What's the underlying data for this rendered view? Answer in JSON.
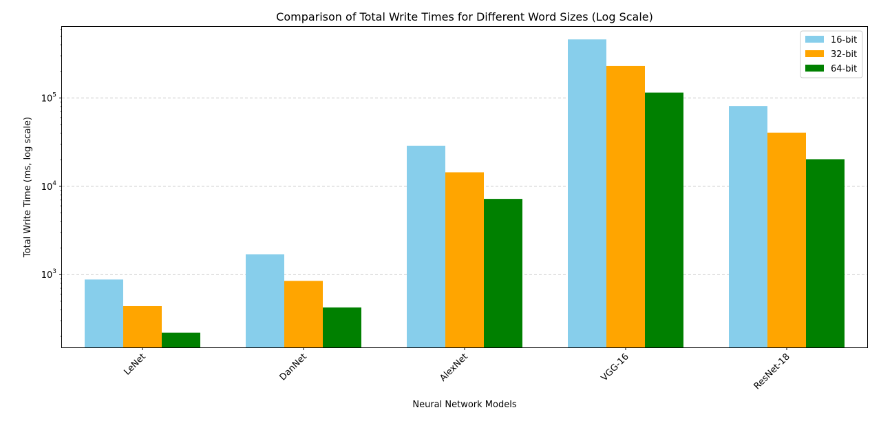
{
  "chart_data": {
    "type": "bar",
    "title": "Comparison of Total Write Times for Different Word Sizes (Log Scale)",
    "xlabel": "Neural Network Models",
    "ylabel": "Total Write Time (ms, log scale)",
    "yscale": "log",
    "ylim": [
      150,
      650000
    ],
    "yticks": [
      {
        "value": 1000,
        "base": "10",
        "exp": "3"
      },
      {
        "value": 10000,
        "base": "10",
        "exp": "4"
      },
      {
        "value": 100000,
        "base": "10",
        "exp": "5"
      }
    ],
    "grid": "y-major-dashed",
    "legend_position": "top-right",
    "categories": [
      "LeNet",
      "DanNet",
      "AlexNet",
      "VGG-16",
      "ResNet-18"
    ],
    "series": [
      {
        "name": "16-bit",
        "color": "#87CEEB",
        "values": [
          880,
          1700,
          28800,
          460000,
          81000
        ]
      },
      {
        "name": "32-bit",
        "color": "#FFA500",
        "values": [
          440,
          850,
          14400,
          230000,
          40500
        ]
      },
      {
        "name": "64-bit",
        "color": "#008000",
        "values": [
          220,
          425,
          7200,
          115000,
          20250
        ]
      }
    ]
  }
}
